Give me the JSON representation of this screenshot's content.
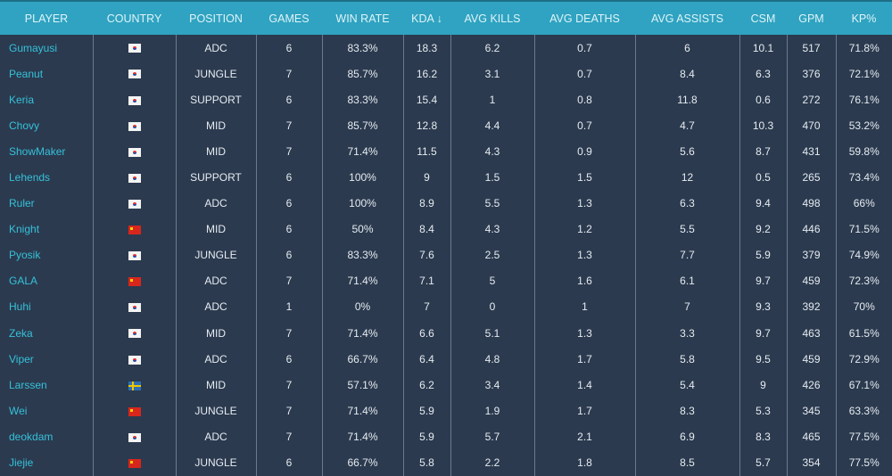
{
  "headers": [
    "PLAYER",
    "COUNTRY",
    "POSITION",
    "GAMES",
    "WIN RATE",
    "KDA ↓",
    "AVG KILLS",
    "AVG DEATHS",
    "AVG ASSISTS",
    "CSM",
    "GPM",
    "KP%"
  ],
  "rows": [
    [
      "Gumayusi",
      "kr",
      "ADC",
      "6",
      "83.3%",
      "18.3",
      "6.2",
      "0.7",
      "6",
      "10.1",
      "517",
      "71.8%"
    ],
    [
      "Peanut",
      "kr",
      "JUNGLE",
      "7",
      "85.7%",
      "16.2",
      "3.1",
      "0.7",
      "8.4",
      "6.3",
      "376",
      "72.1%"
    ],
    [
      "Keria",
      "kr",
      "SUPPORT",
      "6",
      "83.3%",
      "15.4",
      "1",
      "0.8",
      "11.8",
      "0.6",
      "272",
      "76.1%"
    ],
    [
      "Chovy",
      "kr",
      "MID",
      "7",
      "85.7%",
      "12.8",
      "4.4",
      "0.7",
      "4.7",
      "10.3",
      "470",
      "53.2%"
    ],
    [
      "ShowMaker",
      "kr",
      "MID",
      "7",
      "71.4%",
      "11.5",
      "4.3",
      "0.9",
      "5.6",
      "8.7",
      "431",
      "59.8%"
    ],
    [
      "Lehends",
      "kr",
      "SUPPORT",
      "6",
      "100%",
      "9",
      "1.5",
      "1.5",
      "12",
      "0.5",
      "265",
      "73.4%"
    ],
    [
      "Ruler",
      "kr",
      "ADC",
      "6",
      "100%",
      "8.9",
      "5.5",
      "1.3",
      "6.3",
      "9.4",
      "498",
      "66%"
    ],
    [
      "Knight",
      "cn",
      "MID",
      "6",
      "50%",
      "8.4",
      "4.3",
      "1.2",
      "5.5",
      "9.2",
      "446",
      "71.5%"
    ],
    [
      "Pyosik",
      "kr",
      "JUNGLE",
      "6",
      "83.3%",
      "7.6",
      "2.5",
      "1.3",
      "7.7",
      "5.9",
      "379",
      "74.9%"
    ],
    [
      "GALA",
      "cn",
      "ADC",
      "7",
      "71.4%",
      "7.1",
      "5",
      "1.6",
      "6.1",
      "9.7",
      "459",
      "72.3%"
    ],
    [
      "Huhi",
      "kr",
      "ADC",
      "1",
      "0%",
      "7",
      "0",
      "1",
      "7",
      "9.3",
      "392",
      "70%"
    ],
    [
      "Zeka",
      "kr",
      "MID",
      "7",
      "71.4%",
      "6.6",
      "5.1",
      "1.3",
      "3.3",
      "9.7",
      "463",
      "61.5%"
    ],
    [
      "Viper",
      "kr",
      "ADC",
      "6",
      "66.7%",
      "6.4",
      "4.8",
      "1.7",
      "5.8",
      "9.5",
      "459",
      "72.9%"
    ],
    [
      "Larssen",
      "se",
      "MID",
      "7",
      "57.1%",
      "6.2",
      "3.4",
      "1.4",
      "5.4",
      "9",
      "426",
      "67.1%"
    ],
    [
      "Wei",
      "cn",
      "JUNGLE",
      "7",
      "71.4%",
      "5.9",
      "1.9",
      "1.7",
      "8.3",
      "5.3",
      "345",
      "63.3%"
    ],
    [
      "deokdam",
      "kr",
      "ADC",
      "7",
      "71.4%",
      "5.9",
      "5.7",
      "2.1",
      "6.9",
      "8.3",
      "465",
      "77.5%"
    ],
    [
      "Jiejie",
      "cn",
      "JUNGLE",
      "6",
      "66.7%",
      "5.8",
      "2.2",
      "1.8",
      "8.5",
      "5.7",
      "354",
      "77.5%"
    ]
  ]
}
